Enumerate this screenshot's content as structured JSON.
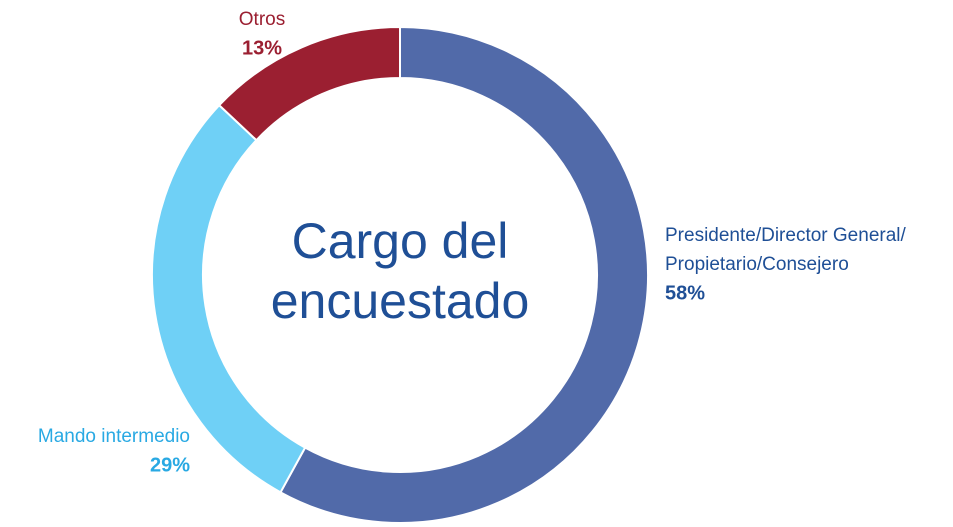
{
  "chart_data": {
    "type": "donut",
    "title": [
      "Cargo del",
      "encuestado"
    ],
    "categories": [
      [
        "Presidente/Director General/",
        "Propietario/Consejero"
      ],
      [
        "Mando intermedio"
      ],
      [
        "Otros"
      ]
    ],
    "values": [
      58,
      29,
      13
    ],
    "value_labels": [
      "58%",
      "29%",
      "13%"
    ],
    "colors": [
      "#516aa9",
      "#6fd0f6",
      "#9b1f31"
    ],
    "label_colors": [
      "#1f4f96",
      "#29a9e3",
      "#9b1f31"
    ]
  }
}
